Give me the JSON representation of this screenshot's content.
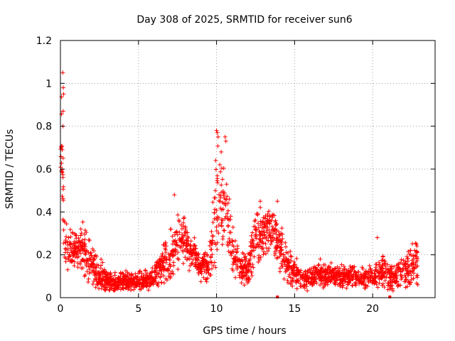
{
  "chart_data": {
    "type": "scatter",
    "title": "Day 308 of 2025, SRMTID for receiver sun6",
    "xlabel": "GPS time / hours",
    "ylabel": "SRMTID / TECUs",
    "xlim": [
      0,
      24
    ],
    "ylim": [
      0,
      1.2
    ],
    "x_ticks": [
      0,
      5,
      10,
      15,
      20
    ],
    "x_tick_labels": [
      "0",
      "5",
      "10",
      "15",
      "20"
    ],
    "y_ticks": [
      0,
      0.2,
      0.4,
      0.6,
      0.8,
      1.0,
      1.2
    ],
    "y_tick_labels": [
      "0",
      "0.2",
      "0.4",
      "0.6",
      "0.8",
      "1",
      "1.2"
    ],
    "grid": true,
    "marker": "+",
    "series_color": "#ff0000",
    "data_end_hour": 22.9,
    "envelope": {
      "hours": [
        0.0,
        0.1,
        0.2,
        0.3,
        0.6,
        1.0,
        1.5,
        2.0,
        2.5,
        3.0,
        3.5,
        4.0,
        4.5,
        5.0,
        5.5,
        6.0,
        6.5,
        7.0,
        7.3,
        7.6,
        8.0,
        8.5,
        9.0,
        9.5,
        9.8,
        10.0,
        10.3,
        10.6,
        11.0,
        11.5,
        12.0,
        12.4,
        12.8,
        13.2,
        13.6,
        14.0,
        14.5,
        15.0,
        15.5,
        16.0,
        16.5,
        17.0,
        17.5,
        18.0,
        18.5,
        19.0,
        19.5,
        20.0,
        20.4,
        20.8,
        21.2,
        21.6,
        22.0,
        22.5,
        22.9
      ],
      "median": [
        0.55,
        0.75,
        0.35,
        0.25,
        0.22,
        0.24,
        0.22,
        0.16,
        0.1,
        0.08,
        0.07,
        0.08,
        0.07,
        0.08,
        0.08,
        0.09,
        0.15,
        0.17,
        0.25,
        0.28,
        0.25,
        0.2,
        0.15,
        0.14,
        0.3,
        0.42,
        0.48,
        0.4,
        0.22,
        0.14,
        0.13,
        0.25,
        0.28,
        0.3,
        0.32,
        0.25,
        0.16,
        0.12,
        0.09,
        0.09,
        0.11,
        0.1,
        0.11,
        0.1,
        0.1,
        0.09,
        0.09,
        0.1,
        0.12,
        0.12,
        0.09,
        0.1,
        0.12,
        0.14,
        0.16
      ],
      "spread": [
        0.06,
        0.2,
        0.1,
        0.07,
        0.06,
        0.07,
        0.08,
        0.07,
        0.05,
        0.04,
        0.03,
        0.03,
        0.03,
        0.03,
        0.03,
        0.04,
        0.07,
        0.08,
        0.1,
        0.08,
        0.07,
        0.06,
        0.05,
        0.05,
        0.12,
        0.18,
        0.15,
        0.12,
        0.08,
        0.05,
        0.05,
        0.09,
        0.08,
        0.08,
        0.08,
        0.08,
        0.06,
        0.05,
        0.04,
        0.04,
        0.04,
        0.04,
        0.04,
        0.04,
        0.04,
        0.04,
        0.04,
        0.04,
        0.06,
        0.06,
        0.04,
        0.05,
        0.05,
        0.07,
        0.07
      ]
    },
    "outliers": [
      {
        "x": 0.15,
        "y": 1.05
      },
      {
        "x": 0.18,
        "y": 0.98
      },
      {
        "x": 0.2,
        "y": 0.95
      },
      {
        "x": 0.17,
        "y": 0.87
      },
      {
        "x": 0.16,
        "y": 0.8
      },
      {
        "x": 0.12,
        "y": 0.69
      },
      {
        "x": 7.3,
        "y": 0.48
      },
      {
        "x": 10.0,
        "y": 0.78
      },
      {
        "x": 10.05,
        "y": 0.77
      },
      {
        "x": 10.1,
        "y": 0.75
      },
      {
        "x": 10.55,
        "y": 0.75
      },
      {
        "x": 10.6,
        "y": 0.73
      },
      {
        "x": 10.3,
        "y": 0.68
      },
      {
        "x": 9.95,
        "y": 0.64
      },
      {
        "x": 12.8,
        "y": 0.45
      },
      {
        "x": 13.9,
        "y": 0.45
      },
      {
        "x": 20.3,
        "y": 0.28
      },
      {
        "x": 22.8,
        "y": 0.25
      }
    ],
    "flag_markers": [
      {
        "x": 13.9,
        "y": 0
      },
      {
        "x": 21.1,
        "y": 0
      }
    ]
  }
}
